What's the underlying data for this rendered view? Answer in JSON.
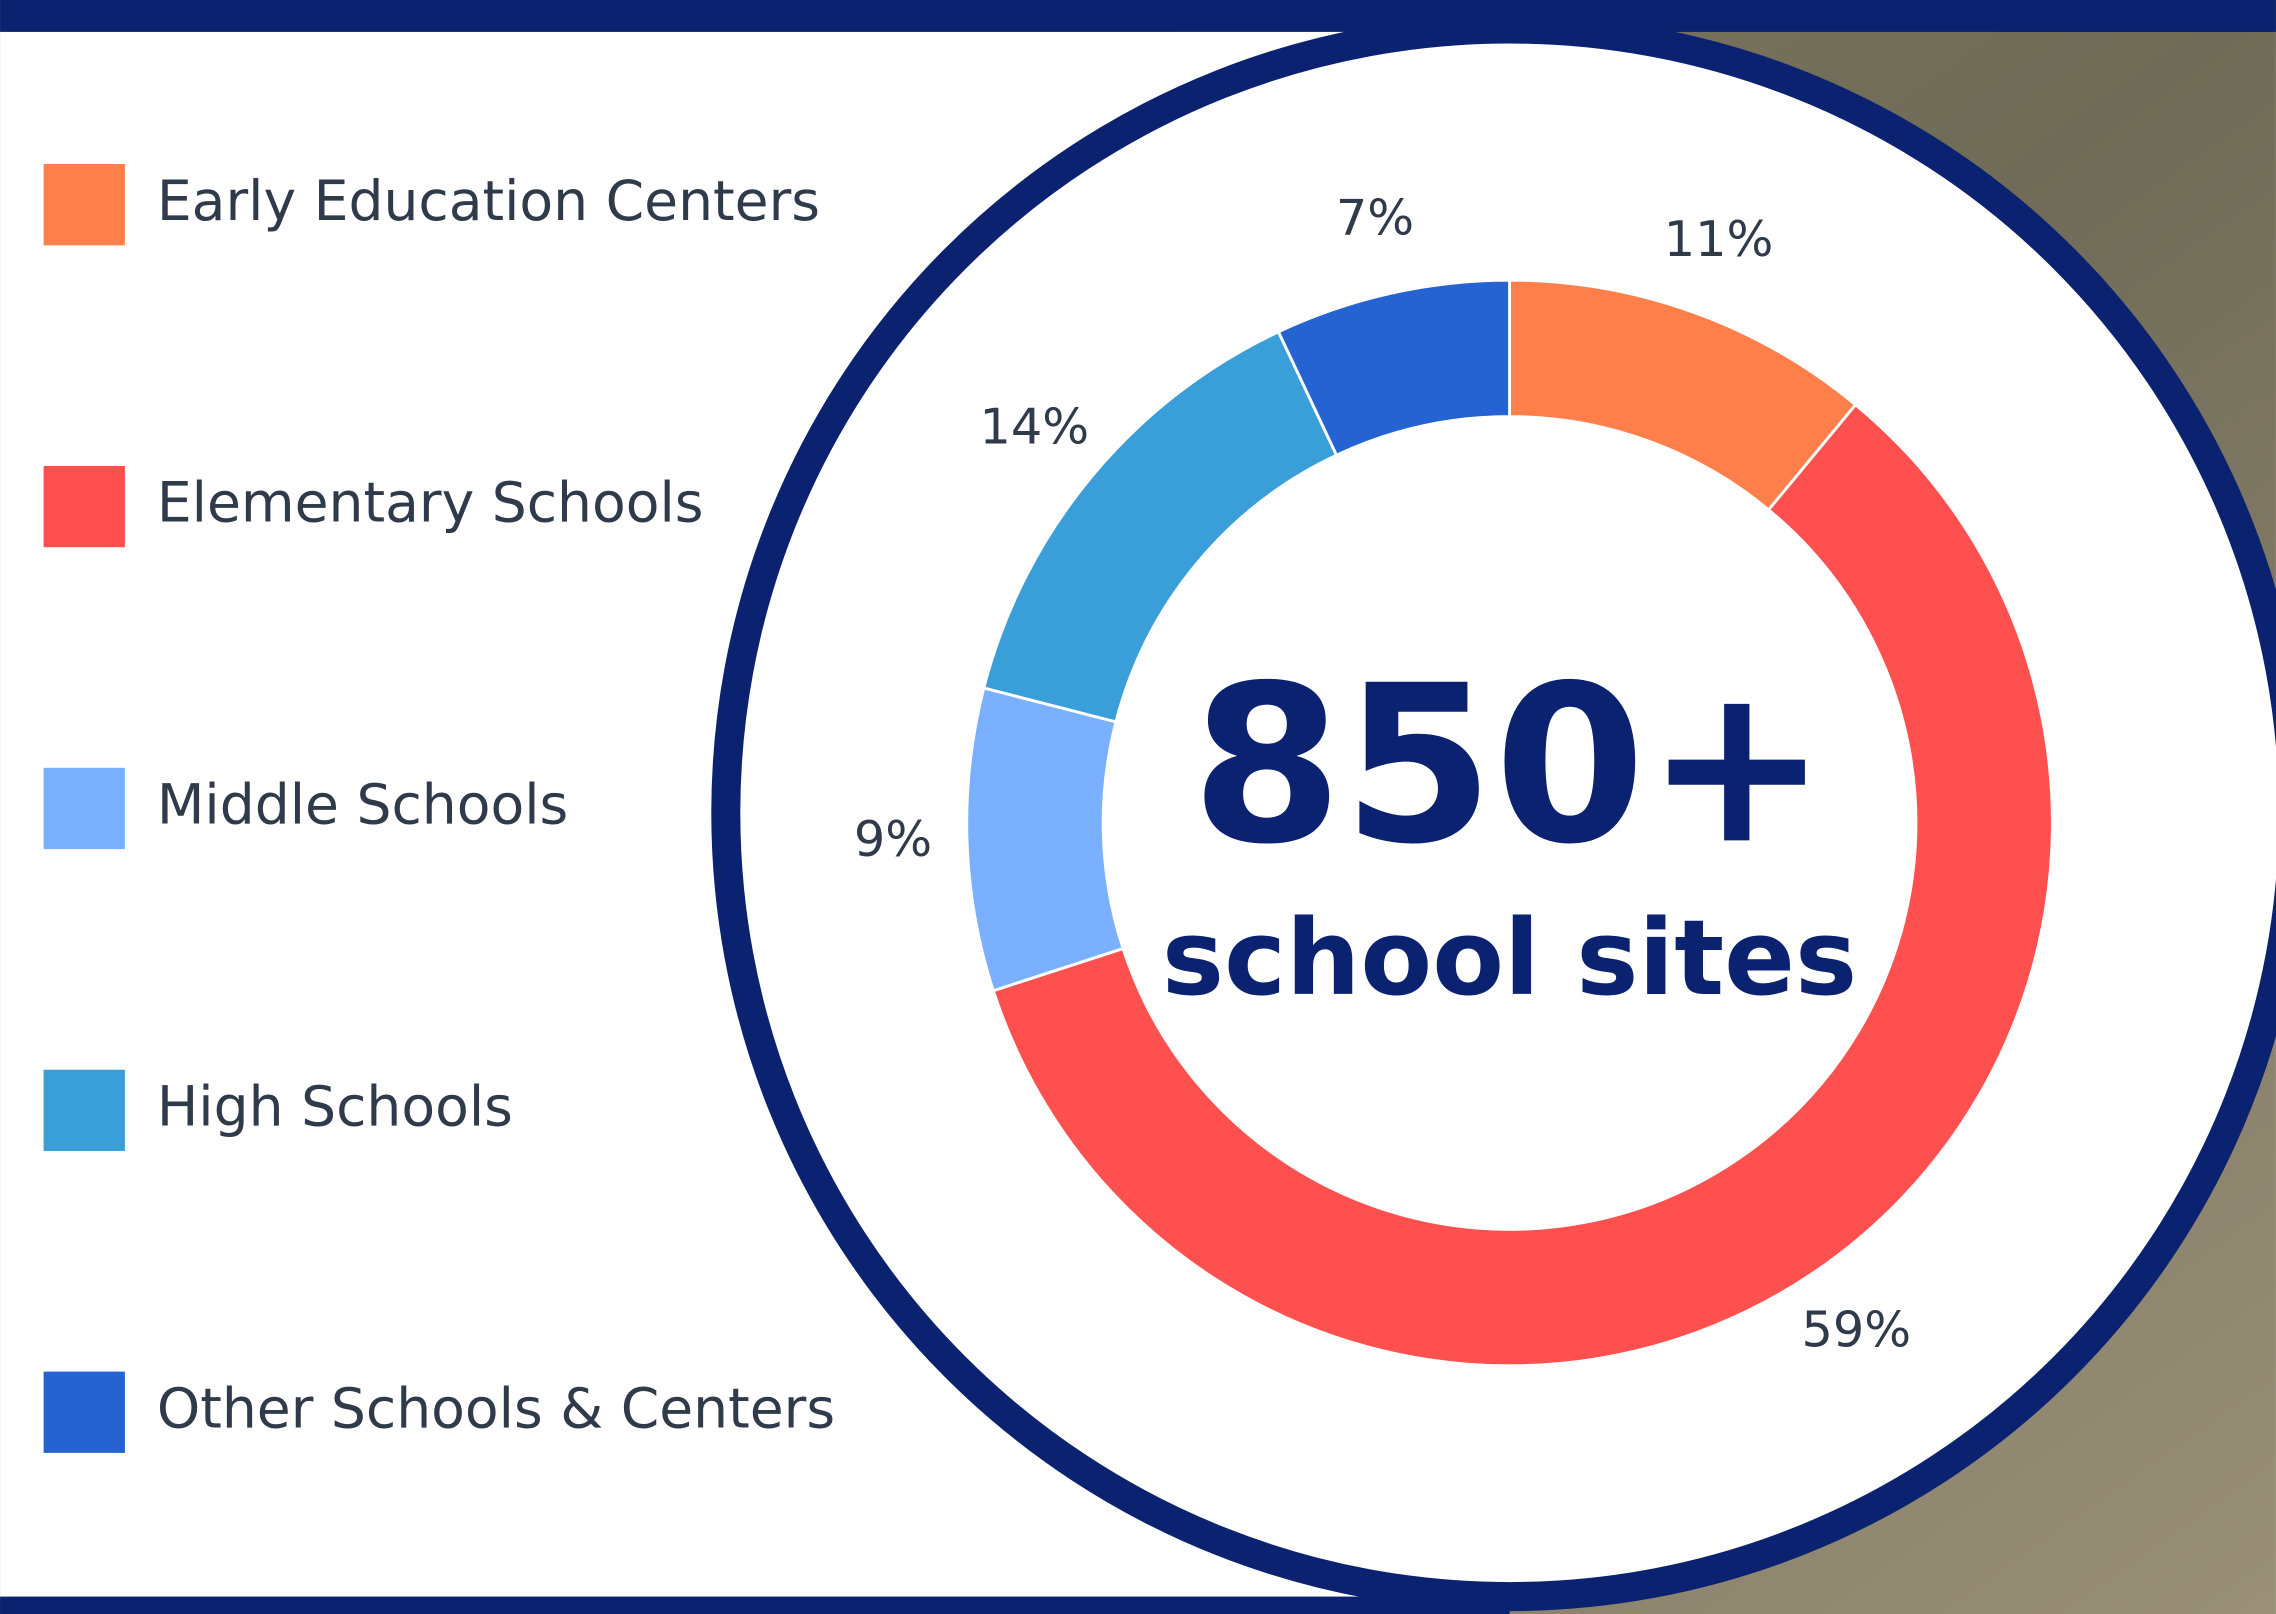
{
  "chart_data": {
    "type": "donut",
    "categories": [
      "Early Education Centers",
      "Elementary Schools",
      "Middle Schools",
      "High Schools",
      "Other Schools & Centers"
    ],
    "values": [
      11,
      59,
      9,
      14,
      7
    ],
    "value_labels": [
      "11%",
      "59%",
      "9%",
      "14%",
      "7%"
    ],
    "colors": [
      "#ff7f4a",
      "#ff5050",
      "#7ab0ff",
      "#3a9fd8",
      "#2463d1"
    ],
    "annotations": [
      "850+",
      "school sites"
    ]
  }
}
